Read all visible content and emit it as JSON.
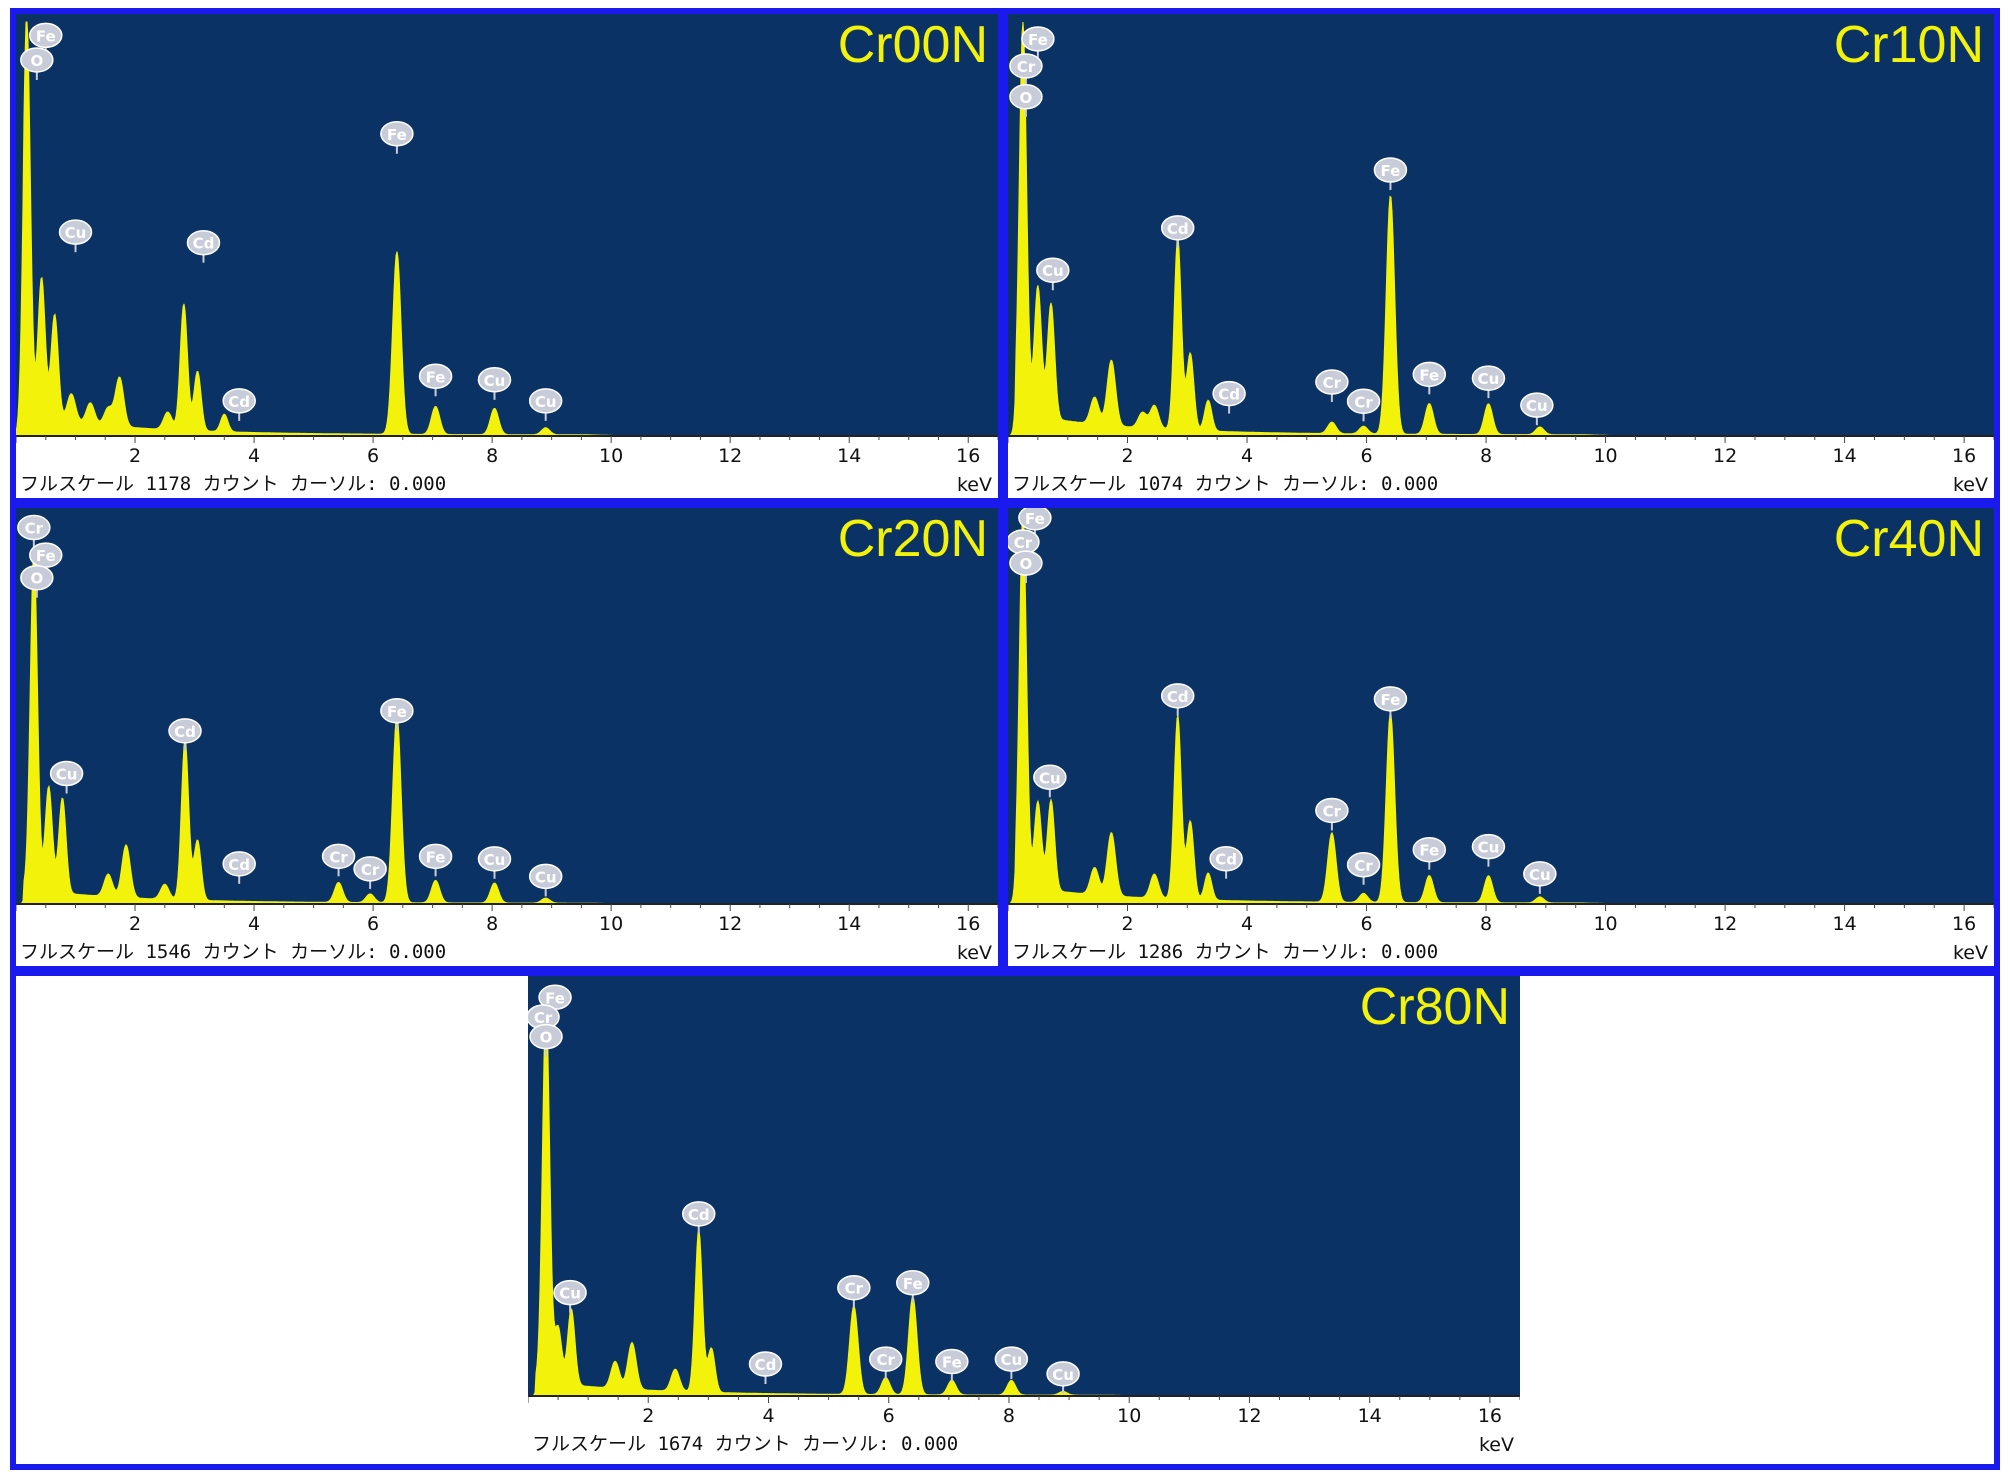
{
  "colors": {
    "plot_bg": "#0b3264",
    "spectrum": "#f2f20a",
    "label_yellow": "#f2f20a",
    "frame": "#1a1aee",
    "marker": "#c8ccd8"
  },
  "chart_data": [
    {
      "type": "area",
      "title": "Cr00N",
      "xlabel": "keV",
      "footer": "フルスケール 1178 カウント カーソル: 0.000",
      "xlim": [
        0,
        16.5
      ],
      "xticks": [
        2,
        4,
        6,
        8,
        10,
        12,
        14,
        16
      ],
      "ylim": [
        0,
        1178
      ],
      "peaks": [
        {
          "x": 0.18,
          "y": 1140,
          "w": 0.06
        },
        {
          "x": 0.43,
          "y": 400,
          "w": 0.06
        },
        {
          "x": 0.65,
          "y": 300,
          "w": 0.06
        },
        {
          "x": 0.93,
          "y": 80,
          "w": 0.07
        },
        {
          "x": 1.25,
          "y": 60,
          "w": 0.07
        },
        {
          "x": 1.55,
          "y": 50,
          "w": 0.07
        },
        {
          "x": 1.74,
          "y": 140,
          "w": 0.07
        },
        {
          "x": 2.55,
          "y": 50,
          "w": 0.07
        },
        {
          "x": 2.82,
          "y": 360,
          "w": 0.06
        },
        {
          "x": 3.05,
          "y": 170,
          "w": 0.06
        },
        {
          "x": 3.5,
          "y": 50,
          "w": 0.06
        },
        {
          "x": 6.4,
          "y": 520,
          "w": 0.07
        },
        {
          "x": 7.05,
          "y": 80,
          "w": 0.07
        },
        {
          "x": 8.04,
          "y": 75,
          "w": 0.07
        },
        {
          "x": 8.9,
          "y": 20,
          "w": 0.07
        }
      ],
      "labels": [
        {
          "text": "Fe",
          "x": 0.5,
          "y": 1140
        },
        {
          "text": "O",
          "x": 0.35,
          "y": 1070
        },
        {
          "text": "Cu",
          "x": 1.0,
          "y": 580
        },
        {
          "text": "Cd",
          "x": 3.15,
          "y": 550
        },
        {
          "text": "Cd",
          "x": 3.75,
          "y": 100
        },
        {
          "text": "Fe",
          "x": 6.4,
          "y": 860
        },
        {
          "text": "Fe",
          "x": 7.05,
          "y": 170
        },
        {
          "text": "Cu",
          "x": 8.04,
          "y": 160
        },
        {
          "text": "Cu",
          "x": 8.9,
          "y": 100
        }
      ]
    },
    {
      "type": "area",
      "title": "Cr10N",
      "xlabel": "keV",
      "footer": "フルスケール 1074 カウント カーソル: 0.000",
      "xlim": [
        0,
        16.5
      ],
      "xticks": [
        2,
        4,
        6,
        8,
        10,
        12,
        14,
        16
      ],
      "ylim": [
        0,
        1074
      ],
      "peaks": [
        {
          "x": 0.25,
          "y": 1020,
          "w": 0.06
        },
        {
          "x": 0.5,
          "y": 340,
          "w": 0.06
        },
        {
          "x": 0.72,
          "y": 300,
          "w": 0.06
        },
        {
          "x": 1.45,
          "y": 70,
          "w": 0.07
        },
        {
          "x": 1.73,
          "y": 170,
          "w": 0.07
        },
        {
          "x": 2.25,
          "y": 40,
          "w": 0.07
        },
        {
          "x": 2.45,
          "y": 60,
          "w": 0.07
        },
        {
          "x": 2.84,
          "y": 500,
          "w": 0.06
        },
        {
          "x": 3.05,
          "y": 200,
          "w": 0.06
        },
        {
          "x": 3.35,
          "y": 80,
          "w": 0.06
        },
        {
          "x": 5.42,
          "y": 30,
          "w": 0.07
        },
        {
          "x": 5.95,
          "y": 20,
          "w": 0.07
        },
        {
          "x": 6.4,
          "y": 620,
          "w": 0.07
        },
        {
          "x": 7.05,
          "y": 80,
          "w": 0.07
        },
        {
          "x": 8.04,
          "y": 80,
          "w": 0.07
        },
        {
          "x": 8.9,
          "y": 20,
          "w": 0.07
        }
      ],
      "labels": [
        {
          "text": "Fe",
          "x": 0.5,
          "y": 1030
        },
        {
          "text": "Cr",
          "x": 0.3,
          "y": 960
        },
        {
          "text": "O",
          "x": 0.3,
          "y": 880
        },
        {
          "text": "Cu",
          "x": 0.75,
          "y": 430
        },
        {
          "text": "Cd",
          "x": 2.84,
          "y": 540
        },
        {
          "text": "Cd",
          "x": 3.7,
          "y": 110
        },
        {
          "text": "Cr",
          "x": 5.42,
          "y": 140
        },
        {
          "text": "Cr",
          "x": 5.95,
          "y": 90
        },
        {
          "text": "Fe",
          "x": 6.4,
          "y": 690
        },
        {
          "text": "Fe",
          "x": 7.05,
          "y": 160
        },
        {
          "text": "Cu",
          "x": 8.04,
          "y": 150
        },
        {
          "text": "Cu",
          "x": 8.85,
          "y": 80
        }
      ]
    },
    {
      "type": "area",
      "title": "Cr20N",
      "xlabel": "keV",
      "footer": "フルスケール 1546 カウント カーソル: 0.000",
      "xlim": [
        0,
        16.5
      ],
      "xticks": [
        2,
        4,
        6,
        8,
        10,
        12,
        14,
        16
      ],
      "ylim": [
        0,
        1546
      ],
      "peaks": [
        {
          "x": 0.3,
          "y": 1350,
          "w": 0.06
        },
        {
          "x": 0.55,
          "y": 420,
          "w": 0.06
        },
        {
          "x": 0.78,
          "y": 380,
          "w": 0.06
        },
        {
          "x": 1.55,
          "y": 90,
          "w": 0.07
        },
        {
          "x": 1.85,
          "y": 210,
          "w": 0.07
        },
        {
          "x": 2.5,
          "y": 60,
          "w": 0.07
        },
        {
          "x": 2.84,
          "y": 640,
          "w": 0.06
        },
        {
          "x": 3.05,
          "y": 240,
          "w": 0.06
        },
        {
          "x": 5.42,
          "y": 80,
          "w": 0.07
        },
        {
          "x": 5.95,
          "y": 35,
          "w": 0.07
        },
        {
          "x": 6.4,
          "y": 750,
          "w": 0.07
        },
        {
          "x": 7.05,
          "y": 90,
          "w": 0.07
        },
        {
          "x": 8.04,
          "y": 80,
          "w": 0.07
        },
        {
          "x": 8.9,
          "y": 20,
          "w": 0.07
        }
      ],
      "labels": [
        {
          "text": "Cr",
          "x": 0.3,
          "y": 1500
        },
        {
          "text": "Fe",
          "x": 0.5,
          "y": 1390
        },
        {
          "text": "O",
          "x": 0.35,
          "y": 1300
        },
        {
          "text": "Cu",
          "x": 0.85,
          "y": 520
        },
        {
          "text": "Cd",
          "x": 2.84,
          "y": 690
        },
        {
          "text": "Cd",
          "x": 3.75,
          "y": 160
        },
        {
          "text": "Cr",
          "x": 5.42,
          "y": 190
        },
        {
          "text": "Cr",
          "x": 5.95,
          "y": 140
        },
        {
          "text": "Fe",
          "x": 6.4,
          "y": 770
        },
        {
          "text": "Fe",
          "x": 7.05,
          "y": 190
        },
        {
          "text": "Cu",
          "x": 8.04,
          "y": 180
        },
        {
          "text": "Cu",
          "x": 8.9,
          "y": 110
        }
      ]
    },
    {
      "type": "area",
      "title": "Cr40N",
      "xlabel": "keV",
      "footer": "フルスケール 1286 カウント カーソル: 0.000",
      "xlim": [
        0,
        16.5
      ],
      "xticks": [
        2,
        4,
        6,
        8,
        10,
        12,
        14,
        16
      ],
      "ylim": [
        0,
        1286
      ],
      "peaks": [
        {
          "x": 0.25,
          "y": 1240,
          "w": 0.06
        },
        {
          "x": 0.5,
          "y": 290,
          "w": 0.06
        },
        {
          "x": 0.72,
          "y": 300,
          "w": 0.06
        },
        {
          "x": 1.45,
          "y": 90,
          "w": 0.07
        },
        {
          "x": 1.73,
          "y": 210,
          "w": 0.07
        },
        {
          "x": 2.45,
          "y": 80,
          "w": 0.07
        },
        {
          "x": 2.84,
          "y": 610,
          "w": 0.06
        },
        {
          "x": 3.05,
          "y": 260,
          "w": 0.06
        },
        {
          "x": 3.35,
          "y": 90,
          "w": 0.06
        },
        {
          "x": 5.42,
          "y": 230,
          "w": 0.07
        },
        {
          "x": 5.95,
          "y": 30,
          "w": 0.07
        },
        {
          "x": 6.4,
          "y": 630,
          "w": 0.07
        },
        {
          "x": 7.05,
          "y": 90,
          "w": 0.07
        },
        {
          "x": 8.04,
          "y": 90,
          "w": 0.07
        },
        {
          "x": 8.9,
          "y": 20,
          "w": 0.07
        }
      ],
      "labels": [
        {
          "text": "Fe",
          "x": 0.45,
          "y": 1280
        },
        {
          "text": "Cr",
          "x": 0.25,
          "y": 1200
        },
        {
          "text": "O",
          "x": 0.3,
          "y": 1130
        },
        {
          "text": "Cu",
          "x": 0.7,
          "y": 420
        },
        {
          "text": "Cd",
          "x": 2.84,
          "y": 690
        },
        {
          "text": "Cd",
          "x": 3.65,
          "y": 150
        },
        {
          "text": "Cr",
          "x": 5.42,
          "y": 310
        },
        {
          "text": "Cr",
          "x": 5.95,
          "y": 130
        },
        {
          "text": "Fe",
          "x": 6.4,
          "y": 680
        },
        {
          "text": "Fe",
          "x": 7.05,
          "y": 180
        },
        {
          "text": "Cu",
          "x": 8.04,
          "y": 190
        },
        {
          "text": "Cu",
          "x": 8.9,
          "y": 100
        }
      ]
    },
    {
      "type": "area",
      "title": "Cr80N",
      "xlabel": "keV",
      "footer": "フルスケール 1674 カウント カーソル: 0.000",
      "xlim": [
        0,
        16.5
      ],
      "xticks": [
        2,
        4,
        6,
        8,
        10,
        12,
        14,
        16
      ],
      "ylim": [
        0,
        1674
      ],
      "peaks": [
        {
          "x": 0.3,
          "y": 1540,
          "w": 0.06
        },
        {
          "x": 0.5,
          "y": 230,
          "w": 0.06
        },
        {
          "x": 0.72,
          "y": 310,
          "w": 0.06
        },
        {
          "x": 1.45,
          "y": 110,
          "w": 0.07
        },
        {
          "x": 1.73,
          "y": 190,
          "w": 0.07
        },
        {
          "x": 2.45,
          "y": 90,
          "w": 0.07
        },
        {
          "x": 2.84,
          "y": 660,
          "w": 0.06
        },
        {
          "x": 3.05,
          "y": 180,
          "w": 0.06
        },
        {
          "x": 5.42,
          "y": 360,
          "w": 0.07
        },
        {
          "x": 5.95,
          "y": 70,
          "w": 0.07
        },
        {
          "x": 6.4,
          "y": 400,
          "w": 0.07
        },
        {
          "x": 7.05,
          "y": 60,
          "w": 0.07
        },
        {
          "x": 8.04,
          "y": 60,
          "w": 0.07
        },
        {
          "x": 8.9,
          "y": 15,
          "w": 0.07
        }
      ],
      "labels": [
        {
          "text": "Fe",
          "x": 0.45,
          "y": 1620
        },
        {
          "text": "Cr",
          "x": 0.25,
          "y": 1540
        },
        {
          "text": "O",
          "x": 0.3,
          "y": 1460
        },
        {
          "text": "Cu",
          "x": 0.7,
          "y": 420
        },
        {
          "text": "Cd",
          "x": 2.84,
          "y": 740
        },
        {
          "text": "Cd",
          "x": 3.95,
          "y": 130
        },
        {
          "text": "Cr",
          "x": 5.42,
          "y": 440
        },
        {
          "text": "Cr",
          "x": 5.95,
          "y": 150
        },
        {
          "text": "Fe",
          "x": 6.4,
          "y": 460
        },
        {
          "text": "Fe",
          "x": 7.05,
          "y": 140
        },
        {
          "text": "Cu",
          "x": 8.04,
          "y": 150
        },
        {
          "text": "Cu",
          "x": 8.9,
          "y": 90
        }
      ]
    }
  ]
}
